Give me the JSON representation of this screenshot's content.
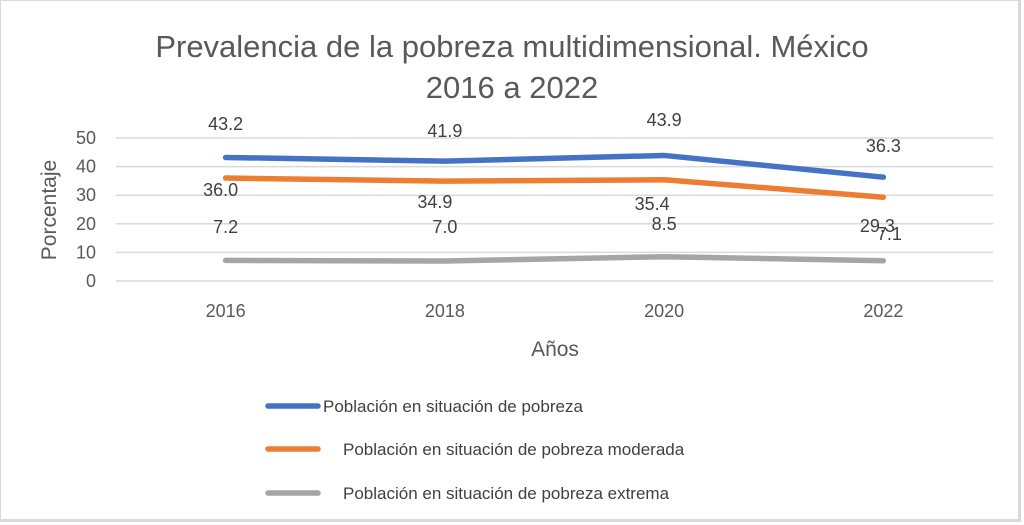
{
  "chart_data": {
    "type": "line",
    "title": [
      "Prevalencia de la pobreza multidimensional. México",
      "2016 a 2022"
    ],
    "xlabel": "Años",
    "ylabel": "Porcentaje",
    "categories": [
      "2016",
      "2018",
      "2020",
      "2022"
    ],
    "ylim": [
      0,
      50
    ],
    "yticks": [
      "0",
      "10",
      "20",
      "30",
      "40",
      "50"
    ],
    "grid": true,
    "legend_position": "bottom",
    "series": [
      {
        "name": "Población en situación de pobreza",
        "color": "#4472c4",
        "values": [
          43.2,
          41.9,
          43.9,
          36.3
        ],
        "labels": [
          "43.2",
          "41.9",
          "43.9",
          "36.3"
        ]
      },
      {
        "name": "Población en situación de pobreza moderada",
        "color": "#ed7d31",
        "values": [
          36.0,
          34.9,
          35.4,
          29.3
        ],
        "labels": [
          "36.0",
          "34.9",
          "35.4",
          "29.3"
        ]
      },
      {
        "name": "Población en situación de pobreza extrema",
        "color": "#a5a5a5",
        "values": [
          7.2,
          7.0,
          8.5,
          7.1
        ],
        "labels": [
          "7.2",
          "7.0",
          "8.5",
          "7.1"
        ]
      }
    ]
  }
}
